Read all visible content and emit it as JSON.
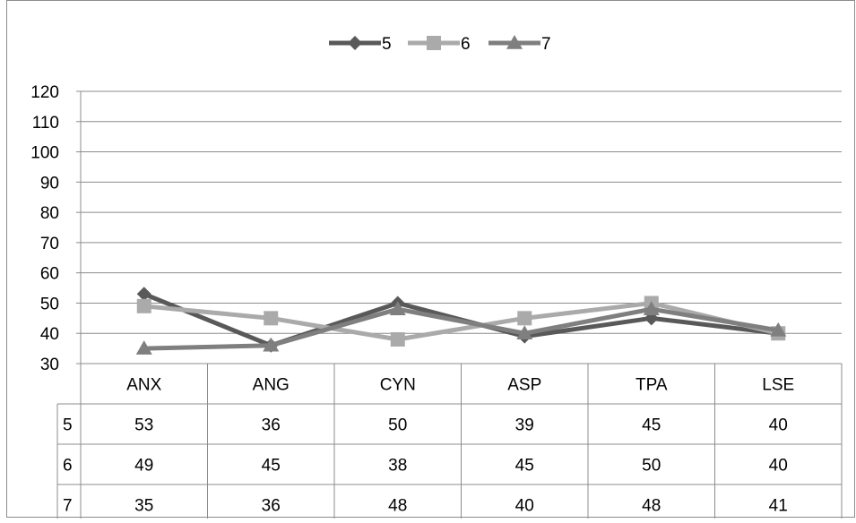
{
  "chart_data": {
    "type": "line",
    "categories": [
      "ANX",
      "ANG",
      "CYN",
      "ASP",
      "TPA",
      "LSE"
    ],
    "series": [
      {
        "name": "5",
        "values": [
          53,
          36,
          50,
          39,
          45,
          40
        ],
        "color": "#595959",
        "marker": "diamond"
      },
      {
        "name": "6",
        "values": [
          49,
          45,
          38,
          45,
          50,
          40
        ],
        "color": "#aaaaaa",
        "marker": "square"
      },
      {
        "name": "7",
        "values": [
          35,
          36,
          48,
          40,
          48,
          41
        ],
        "color": "#7f7f7f",
        "marker": "triangle"
      }
    ],
    "ylim": [
      30,
      120
    ],
    "yticks": [
      30,
      40,
      50,
      60,
      70,
      80,
      90,
      100,
      110,
      120
    ],
    "grid": true,
    "legend": "top-center",
    "data_table": true
  }
}
